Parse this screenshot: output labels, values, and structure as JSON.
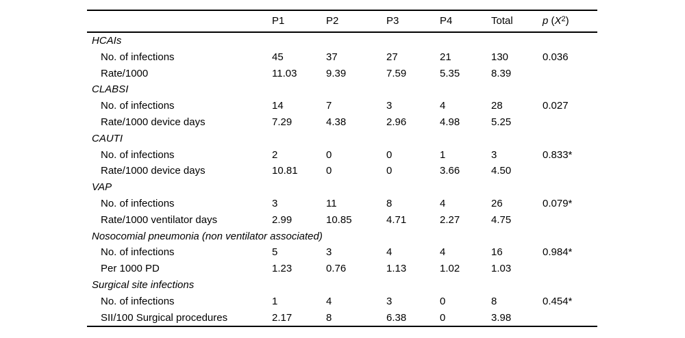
{
  "header": {
    "cols": [
      "P1",
      "P2",
      "P3",
      "P4",
      "Total"
    ],
    "p_col": {
      "p": "p",
      "open": " (",
      "x": "X",
      "sup": "2",
      "close": ")"
    }
  },
  "sections": [
    {
      "title": "HCAIs",
      "rows": [
        {
          "label": "No. of infections",
          "values": [
            "45",
            "37",
            "27",
            "21",
            "130",
            "0.036"
          ]
        },
        {
          "label": "Rate/1000",
          "values": [
            "11.03",
            "9.39",
            "7.59",
            "5.35",
            "8.39",
            ""
          ]
        }
      ]
    },
    {
      "title": "CLABSI",
      "rows": [
        {
          "label": "No. of infections",
          "values": [
            "14",
            "7",
            "3",
            "4",
            "28",
            "0.027"
          ]
        },
        {
          "label": "Rate/1000 device days",
          "values": [
            "7.29",
            "4.38",
            "2.96",
            "4.98",
            "5.25",
            ""
          ]
        }
      ]
    },
    {
      "title": "CAUTI",
      "rows": [
        {
          "label": "No. of infections",
          "values": [
            "2",
            "0",
            "0",
            "1",
            "3",
            "0.833*"
          ]
        },
        {
          "label": "Rate/1000 device days",
          "values": [
            "10.81",
            "0",
            "0",
            "3.66",
            "4.50",
            ""
          ]
        }
      ]
    },
    {
      "title": "VAP",
      "rows": [
        {
          "label": "No. of infections",
          "values": [
            "3",
            "11",
            "8",
            "4",
            "26",
            "0.079*"
          ]
        },
        {
          "label": "Rate/1000 ventilator days",
          "values": [
            "2.99",
            "10.85",
            "4.71",
            "2.27",
            "4.75",
            ""
          ]
        }
      ]
    },
    {
      "title": "Nosocomial pneumonia (non ventilator associated)",
      "rows": [
        {
          "label": "No. of infections",
          "values": [
            "5",
            "3",
            "4",
            "4",
            "16",
            "0.984*"
          ]
        },
        {
          "label": "Per 1000 PD",
          "values": [
            "1.23",
            "0.76",
            "1.13",
            "1.02",
            "1.03",
            ""
          ]
        }
      ]
    },
    {
      "title": "Surgical site infections",
      "rows": [
        {
          "label": "No. of infections",
          "values": [
            "1",
            "4",
            "3",
            "0",
            "8",
            "0.454*"
          ]
        },
        {
          "label": "SII/100 Surgical procedures",
          "values": [
            "2.17",
            "8",
            "6.38",
            "0",
            "3.98",
            ""
          ]
        }
      ]
    }
  ]
}
